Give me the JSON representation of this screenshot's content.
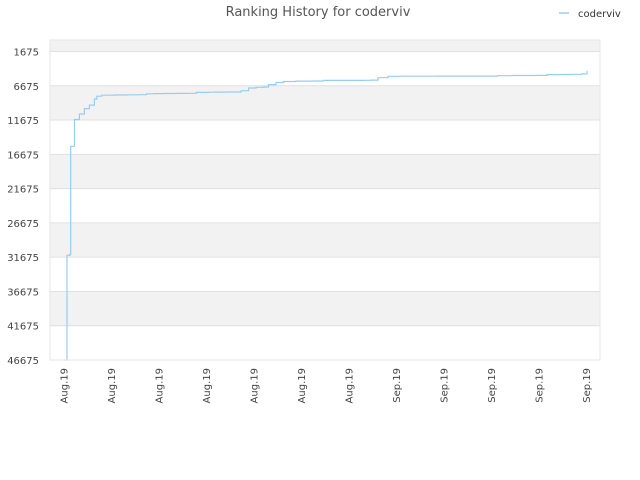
{
  "chart_data": {
    "type": "line",
    "title": "Ranking History for coderviv",
    "xlabel": "",
    "ylabel": "",
    "y_reversed": true,
    "ylim": [
      46675,
      0
    ],
    "y_ticks": [
      1675,
      6675,
      11675,
      16675,
      21675,
      26675,
      31675,
      36675,
      41675,
      46675
    ],
    "x_tick_labels": [
      "Aug.19",
      "Aug.19",
      "Aug.19",
      "Aug.19",
      "Aug.19",
      "Aug.19",
      "Aug.19",
      "Sep.19",
      "Sep.19",
      "Sep.19",
      "Sep.19",
      "Sep.19"
    ],
    "legend_position": "top-right",
    "grid": true,
    "colors": {
      "series": "#99ccf2",
      "band": "#f2f2f2",
      "grid": "#e0e0e0"
    },
    "series": [
      {
        "name": "coderviv",
        "points": [
          [
            0.0,
            46675
          ],
          [
            0.1,
            31400
          ],
          [
            0.2,
            31300
          ],
          [
            0.25,
            15500
          ],
          [
            0.4,
            11600
          ],
          [
            0.6,
            10800
          ],
          [
            0.8,
            10000
          ],
          [
            1.0,
            9500
          ],
          [
            1.2,
            8600
          ],
          [
            1.3,
            8200
          ],
          [
            1.5,
            8050
          ],
          [
            2.0,
            8020
          ],
          [
            2.5,
            8000
          ],
          [
            3.0,
            7980
          ],
          [
            3.3,
            7850
          ],
          [
            3.6,
            7820
          ],
          [
            4.0,
            7800
          ],
          [
            4.5,
            7790
          ],
          [
            5.0,
            7780
          ],
          [
            5.3,
            7650
          ],
          [
            5.8,
            7620
          ],
          [
            6.0,
            7600
          ],
          [
            6.5,
            7590
          ],
          [
            7.0,
            7580
          ],
          [
            7.1,
            7400
          ],
          [
            7.4,
            7000
          ],
          [
            7.7,
            6900
          ],
          [
            8.0,
            6850
          ],
          [
            8.2,
            6500
          ],
          [
            8.5,
            6200
          ],
          [
            8.8,
            6050
          ],
          [
            9.3,
            6000
          ],
          [
            10.0,
            5980
          ],
          [
            10.4,
            5900
          ],
          [
            11.0,
            5890
          ],
          [
            12.0,
            5880
          ],
          [
            12.3,
            5850
          ],
          [
            12.6,
            5500
          ],
          [
            13.0,
            5300
          ],
          [
            13.5,
            5280
          ],
          [
            14.0,
            5275
          ],
          [
            15.0,
            5270
          ],
          [
            16.0,
            5265
          ],
          [
            17.0,
            5260
          ],
          [
            17.4,
            5200
          ],
          [
            18.0,
            5180
          ],
          [
            18.5,
            5175
          ],
          [
            19.0,
            5170
          ],
          [
            19.4,
            5050
          ],
          [
            20.0,
            5030
          ],
          [
            20.4,
            5000
          ],
          [
            20.8,
            4950
          ],
          [
            21.0,
            4500
          ]
        ]
      }
    ]
  }
}
